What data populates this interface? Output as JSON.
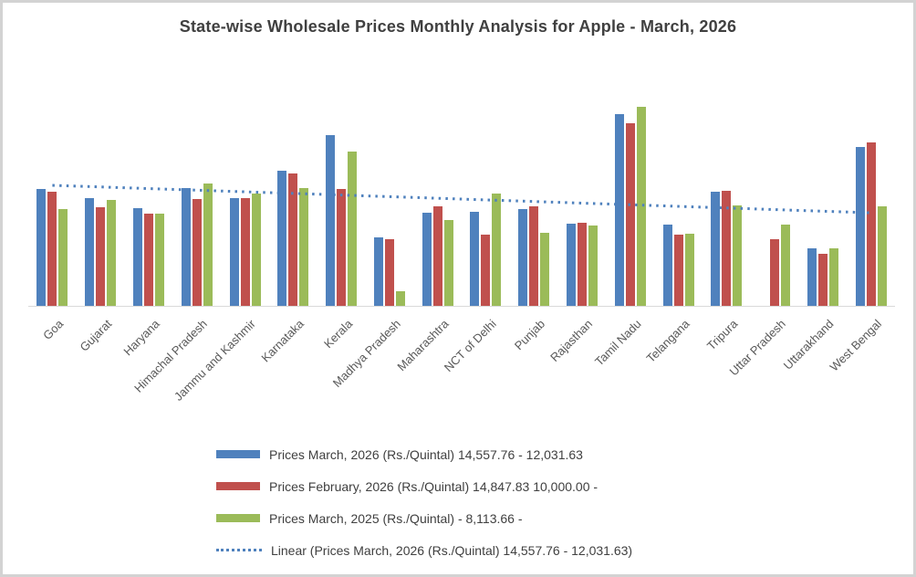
{
  "title": "State-wise Wholesale Prices Monthly Analysis for Apple - March, 2026",
  "colors": {
    "series_march_2026": "#4F81BD",
    "series_february_2026": "#C0504D",
    "series_march_2025": "#9BBB59",
    "trendline": "#4F81BD",
    "axis_line": "#D9D9D9",
    "title_text": "#404040",
    "legend_text": "#404040",
    "axis_label_text": "#595959",
    "frame_border": "#D3D3D3",
    "background": "#FFFFFF"
  },
  "chart_data": {
    "type": "bar",
    "title": "State-wise Wholesale Prices Monthly Analysis for Apple - March, 2026",
    "categories": [
      "Goa",
      "Gujarat",
      "Haryana",
      "Himachal Pradesh",
      "Jammu and Kashmir",
      "Karnataka",
      "Kerala",
      "Madhya Pradesh",
      "Maharashtra",
      "NCT of Delhi",
      "Punjab",
      "Rajasthan",
      "Tamil Nadu",
      "Telangana",
      "Tripura",
      "Uttar Pradesh",
      "Uttarakhand",
      "West Bengal"
    ],
    "series": [
      {
        "name": "Prices March, 2026 (Rs./Quintal) 14,557.76 - 12,031.63",
        "color": "#4F81BD",
        "values": [
          8720,
          8040,
          7290,
          8780,
          8040,
          10080,
          12730,
          5110,
          6950,
          7010,
          7220,
          6130,
          14300,
          6060,
          8510,
          0,
          4290,
          11850
        ]
      },
      {
        "name": "Prices February, 2026 (Rs./Quintal) 14,847.83 10,000.00 -",
        "color": "#C0504D",
        "values": [
          8510,
          7350,
          6880,
          7970,
          8040,
          9870,
          8720,
          4970,
          7420,
          5310,
          7420,
          6200,
          13620,
          5310,
          8580,
          4970,
          3880,
          12190
        ]
      },
      {
        "name": "Prices March, 2025 (Rs./Quintal) - 8,113.66 -",
        "color": "#9BBB59",
        "values": [
          7220,
          7900,
          6880,
          9120,
          8380,
          8780,
          11510,
          1090,
          6400,
          8380,
          5450,
          5990,
          14850,
          5380,
          7490,
          6060,
          4290,
          7420
        ]
      }
    ],
    "trendline": {
      "name": "Linear (Prices March, 2026 (Rs./Quintal) 14,557.76 - 12,031.63)",
      "series_ref": 0,
      "style": "dotted",
      "color": "#4F81BD",
      "start_value": 9000,
      "end_value": 6950
    },
    "xlabel": "",
    "ylabel": "",
    "ylim": [
      0,
      18000
    ],
    "y_axis_visible": false,
    "gridlines": false,
    "legend_position": "bottom-left",
    "x_label_rotation": -45,
    "values_note": "Y axis is unlabeled in the chart; series values estimated from bar heights."
  }
}
